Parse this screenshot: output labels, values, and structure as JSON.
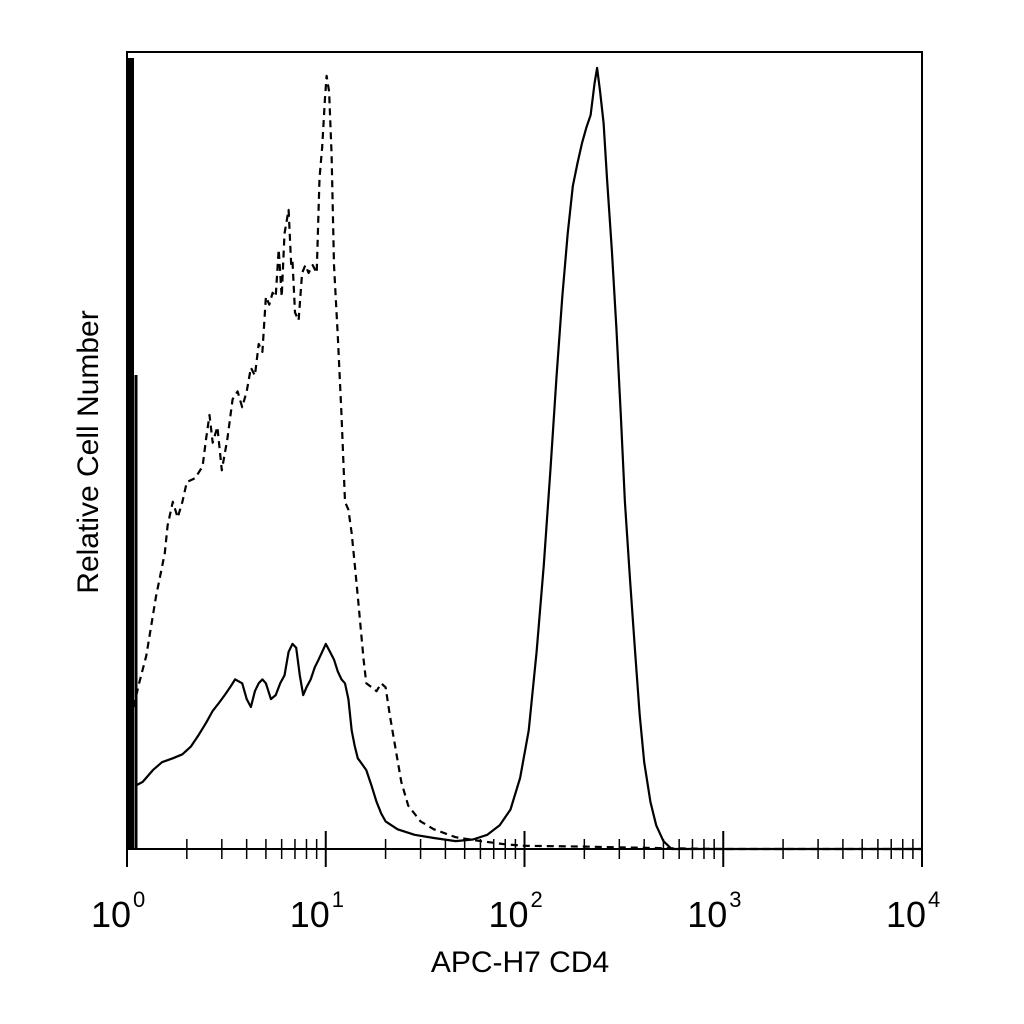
{
  "chart_data": {
    "type": "line",
    "title": "",
    "xlabel": "APC-H7 CD4",
    "ylabel": "Relative Cell Number",
    "xscale": "log",
    "xlim": [
      1,
      10000
    ],
    "ylim": [
      0,
      100
    ],
    "grid": false,
    "legend": "none",
    "x_ticks": [
      {
        "base": "10",
        "exp": "0",
        "value": 1
      },
      {
        "base": "10",
        "exp": "1",
        "value": 10
      },
      {
        "base": "10",
        "exp": "2",
        "value": 100
      },
      {
        "base": "10",
        "exp": "3",
        "value": 1000
      },
      {
        "base": "10",
        "exp": "4",
        "value": 10000
      }
    ],
    "series": [
      {
        "style": "dashed",
        "color": "#000000",
        "points": [
          [
            1.08,
            18.0
          ],
          [
            1.15,
            21.0
          ],
          [
            1.25,
            24.5
          ],
          [
            1.4,
            32.0
          ],
          [
            1.55,
            37.5
          ],
          [
            1.6,
            41.0
          ],
          [
            1.7,
            44.0
          ],
          [
            1.8,
            42.0
          ],
          [
            1.9,
            44.0
          ],
          [
            2.0,
            46.5
          ],
          [
            2.2,
            47.0
          ],
          [
            2.4,
            48.5
          ],
          [
            2.5,
            52.0
          ],
          [
            2.6,
            55.0
          ],
          [
            2.7,
            51.5
          ],
          [
            2.85,
            53.5
          ],
          [
            3.0,
            48.0
          ],
          [
            3.2,
            52.0
          ],
          [
            3.4,
            57.0
          ],
          [
            3.6,
            58.0
          ],
          [
            3.8,
            56.0
          ],
          [
            4.0,
            58.0
          ],
          [
            4.2,
            61.0
          ],
          [
            4.4,
            60.0
          ],
          [
            4.6,
            64.0
          ],
          [
            4.8,
            63.0
          ],
          [
            5.0,
            70.0
          ],
          [
            5.2,
            69.0
          ],
          [
            5.4,
            70.5
          ],
          [
            5.6,
            70.0
          ],
          [
            5.8,
            76.0
          ],
          [
            6.0,
            70.0
          ],
          [
            6.2,
            78.0
          ],
          [
            6.5,
            81.0
          ],
          [
            6.7,
            74.0
          ],
          [
            6.8,
            74.5
          ],
          [
            7.0,
            68.0
          ],
          [
            7.3,
            67.0
          ],
          [
            7.6,
            73.0
          ],
          [
            7.9,
            74.0
          ],
          [
            8.2,
            73.0
          ],
          [
            8.6,
            74.0
          ],
          [
            9.0,
            73.0
          ],
          [
            9.3,
            85.0
          ],
          [
            9.6,
            89.0
          ],
          [
            9.9,
            95.0
          ],
          [
            10.1,
            98.0
          ],
          [
            10.4,
            96.0
          ],
          [
            10.7,
            88.0
          ],
          [
            11.0,
            74.0
          ],
          [
            11.5,
            65.0
          ],
          [
            12.0,
            55.0
          ],
          [
            12.5,
            44.0
          ],
          [
            13.0,
            43.0
          ],
          [
            13.5,
            40.0
          ],
          [
            14.0,
            36.0
          ],
          [
            14.5,
            32.0
          ],
          [
            15.0,
            28.0
          ],
          [
            15.5,
            24.0
          ],
          [
            16.0,
            21.0
          ],
          [
            17.0,
            20.5
          ],
          [
            18.0,
            20.0
          ],
          [
            19.0,
            21.0
          ],
          [
            20.0,
            20.5
          ],
          [
            21.0,
            17.0
          ],
          [
            22.0,
            14.0
          ],
          [
            24.0,
            8.5
          ],
          [
            26.0,
            5.5
          ],
          [
            30.0,
            3.5
          ],
          [
            35.0,
            2.5
          ],
          [
            45.0,
            1.5
          ],
          [
            60.0,
            1.0
          ],
          [
            80.0,
            0.6
          ],
          [
            100.0,
            0.4
          ],
          [
            200.0,
            0.3
          ],
          [
            500.0,
            0.1
          ],
          [
            1000.0,
            0.0
          ],
          [
            10000.0,
            0.0
          ]
        ]
      },
      {
        "style": "solid",
        "color": "#000000",
        "points": [
          [
            1.1,
            8.0
          ],
          [
            1.2,
            8.5
          ],
          [
            1.35,
            10.0
          ],
          [
            1.5,
            11.0
          ],
          [
            1.7,
            11.5
          ],
          [
            1.9,
            12.0
          ],
          [
            2.1,
            13.0
          ],
          [
            2.3,
            14.5
          ],
          [
            2.5,
            16.0
          ],
          [
            2.7,
            17.5
          ],
          [
            2.9,
            18.5
          ],
          [
            3.1,
            19.5
          ],
          [
            3.3,
            20.5
          ],
          [
            3.5,
            21.5
          ],
          [
            3.8,
            21.0
          ],
          [
            4.0,
            19.0
          ],
          [
            4.2,
            18.0
          ],
          [
            4.4,
            20.0
          ],
          [
            4.6,
            21.0
          ],
          [
            4.8,
            21.5
          ],
          [
            5.0,
            21.0
          ],
          [
            5.3,
            19.0
          ],
          [
            5.6,
            19.5
          ],
          [
            5.9,
            21.0
          ],
          [
            6.2,
            22.0
          ],
          [
            6.5,
            25.0
          ],
          [
            6.8,
            26.0
          ],
          [
            7.1,
            25.5
          ],
          [
            7.4,
            22.0
          ],
          [
            7.7,
            19.5
          ],
          [
            8.0,
            20.5
          ],
          [
            8.4,
            21.5
          ],
          [
            8.8,
            23.0
          ],
          [
            9.2,
            24.0
          ],
          [
            9.6,
            25.0
          ],
          [
            10.0,
            26.0
          ],
          [
            10.5,
            25.0
          ],
          [
            11.0,
            24.0
          ],
          [
            11.5,
            22.5
          ],
          [
            12.0,
            21.5
          ],
          [
            12.5,
            21.0
          ],
          [
            13.0,
            19.0
          ],
          [
            13.5,
            15.0
          ],
          [
            14.0,
            13.0
          ],
          [
            14.5,
            11.5
          ],
          [
            15.0,
            11.0
          ],
          [
            16.0,
            10.0
          ],
          [
            17.0,
            8.0
          ],
          [
            18.0,
            6.0
          ],
          [
            19.0,
            4.5
          ],
          [
            20.0,
            3.5
          ],
          [
            23.0,
            2.5
          ],
          [
            28.0,
            1.8
          ],
          [
            35.0,
            1.4
          ],
          [
            45.0,
            1.0
          ],
          [
            55.0,
            1.2
          ],
          [
            65.0,
            1.8
          ],
          [
            75.0,
            3.0
          ],
          [
            85.0,
            5.0
          ],
          [
            95.0,
            9.0
          ],
          [
            105.0,
            15.0
          ],
          [
            115.0,
            25.0
          ],
          [
            125.0,
            36.0
          ],
          [
            135.0,
            48.0
          ],
          [
            145.0,
            60.0
          ],
          [
            155.0,
            70.0
          ],
          [
            165.0,
            78.0
          ],
          [
            175.0,
            84.0
          ],
          [
            185.0,
            87.0
          ],
          [
            195.0,
            89.5
          ],
          [
            205.0,
            91.5
          ],
          [
            215.0,
            93.0
          ],
          [
            225.0,
            97.0
          ],
          [
            232.0,
            99.0
          ],
          [
            240.0,
            96.0
          ],
          [
            250.0,
            92.0
          ],
          [
            260.0,
            85.0
          ],
          [
            275.0,
            76.0
          ],
          [
            290.0,
            66.0
          ],
          [
            305.0,
            55.0
          ],
          [
            320.0,
            44.0
          ],
          [
            340.0,
            34.0
          ],
          [
            360.0,
            25.0
          ],
          [
            380.0,
            17.0
          ],
          [
            400.0,
            11.0
          ],
          [
            430.0,
            6.0
          ],
          [
            460.0,
            3.0
          ],
          [
            500.0,
            1.0
          ],
          [
            550.0,
            0.0
          ],
          [
            10000.0,
            0.0
          ]
        ]
      }
    ]
  }
}
